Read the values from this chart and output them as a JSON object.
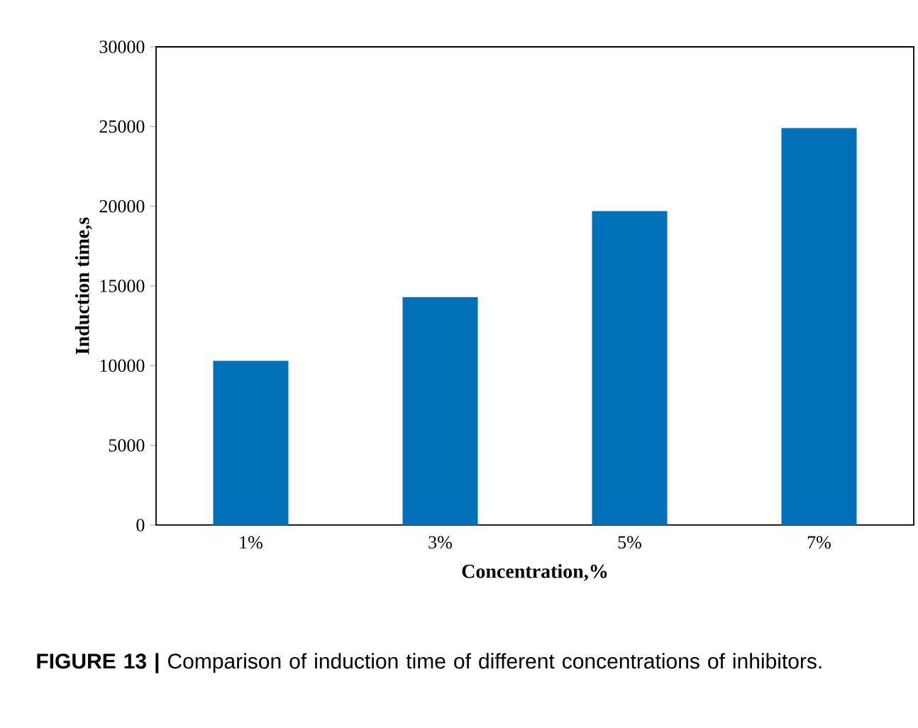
{
  "chart_data": {
    "type": "bar",
    "xlabel": "Concentration,%",
    "ylabel": "Induction time,s",
    "categories": [
      "1%",
      "3%",
      "5%",
      "7%"
    ],
    "values": [
      10300,
      14300,
      19700,
      24900
    ],
    "color": "#0070b8",
    "ylim": [
      0,
      30000
    ],
    "yticks": [
      0,
      5000,
      10000,
      15000,
      20000,
      25000,
      30000
    ],
    "annotations": [
      "**FIGURE 13 |** Comparison of induction time of different concentrations of inhibitors."
    ]
  }
}
